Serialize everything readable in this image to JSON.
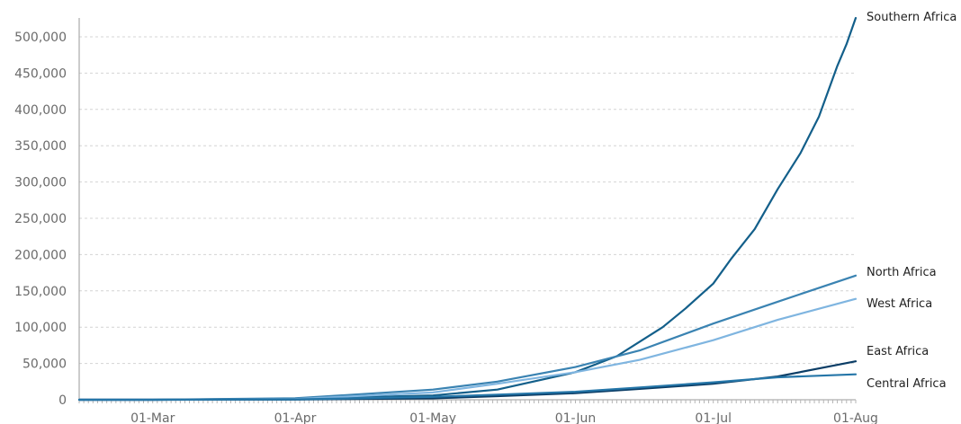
{
  "chart_data": {
    "type": "line",
    "title": "",
    "xlabel": "",
    "ylabel": "",
    "x_type": "date",
    "x_range": [
      "2020-02-14",
      "2020-08-01"
    ],
    "x_ticks": [
      {
        "date": "2020-03-01",
        "label": "01-Mar"
      },
      {
        "date": "2020-04-01",
        "label": "01-Apr"
      },
      {
        "date": "2020-05-01",
        "label": "01-May"
      },
      {
        "date": "2020-06-01",
        "label": "01-Jun"
      },
      {
        "date": "2020-07-01",
        "label": "01-Jul"
      },
      {
        "date": "2020-08-01",
        "label": "01-Aug"
      }
    ],
    "ylim": [
      0,
      525000
    ],
    "y_ticks": [
      {
        "value": 0,
        "label": "0"
      },
      {
        "value": 50000,
        "label": "50,000"
      },
      {
        "value": 100000,
        "label": "100,000"
      },
      {
        "value": 150000,
        "label": "150,000"
      },
      {
        "value": 200000,
        "label": "200,000"
      },
      {
        "value": 250000,
        "label": "250,000"
      },
      {
        "value": 300000,
        "label": "300,000"
      },
      {
        "value": 350000,
        "label": "350,000"
      },
      {
        "value": 400000,
        "label": "400,000"
      },
      {
        "value": 450000,
        "label": "450,000"
      },
      {
        "value": 500000,
        "label": "500,000"
      }
    ],
    "grid": true,
    "legend": "none (series labelled at line ends)",
    "series": [
      {
        "name": "Southern Africa",
        "color": "#135f8a",
        "points": [
          [
            "2020-02-14",
            0
          ],
          [
            "2020-03-01",
            0
          ],
          [
            "2020-04-01",
            1500
          ],
          [
            "2020-05-01",
            6000
          ],
          [
            "2020-05-15",
            14000
          ],
          [
            "2020-06-01",
            38000
          ],
          [
            "2020-06-10",
            60000
          ],
          [
            "2020-06-20",
            100000
          ],
          [
            "2020-06-25",
            126000
          ],
          [
            "2020-07-01",
            160000
          ],
          [
            "2020-07-05",
            195000
          ],
          [
            "2020-07-10",
            235000
          ],
          [
            "2020-07-15",
            290000
          ],
          [
            "2020-07-20",
            340000
          ],
          [
            "2020-07-24",
            390000
          ],
          [
            "2020-07-28",
            460000
          ],
          [
            "2020-07-30",
            490000
          ],
          [
            "2020-08-01",
            526000
          ]
        ]
      },
      {
        "name": "North Africa",
        "color": "#3a83b2",
        "points": [
          [
            "2020-02-14",
            0
          ],
          [
            "2020-03-01",
            0
          ],
          [
            "2020-04-01",
            2000
          ],
          [
            "2020-05-01",
            14000
          ],
          [
            "2020-05-15",
            25000
          ],
          [
            "2020-06-01",
            45000
          ],
          [
            "2020-06-15",
            68000
          ],
          [
            "2020-07-01",
            105000
          ],
          [
            "2020-07-15",
            135000
          ],
          [
            "2020-08-01",
            171000
          ]
        ]
      },
      {
        "name": "West Africa",
        "color": "#7fb5e0",
        "points": [
          [
            "2020-02-14",
            0
          ],
          [
            "2020-03-01",
            0
          ],
          [
            "2020-04-01",
            1000
          ],
          [
            "2020-05-01",
            10000
          ],
          [
            "2020-05-15",
            22000
          ],
          [
            "2020-06-01",
            38000
          ],
          [
            "2020-06-15",
            55000
          ],
          [
            "2020-07-01",
            82000
          ],
          [
            "2020-07-15",
            110000
          ],
          [
            "2020-08-01",
            139000
          ]
        ]
      },
      {
        "name": "East Africa",
        "color": "#0b3d66",
        "points": [
          [
            "2020-02-14",
            0
          ],
          [
            "2020-03-01",
            0
          ],
          [
            "2020-04-01",
            300
          ],
          [
            "2020-05-01",
            2000
          ],
          [
            "2020-05-15",
            5000
          ],
          [
            "2020-06-01",
            9000
          ],
          [
            "2020-06-15",
            15000
          ],
          [
            "2020-07-01",
            22000
          ],
          [
            "2020-07-15",
            32000
          ],
          [
            "2020-08-01",
            53000
          ]
        ]
      },
      {
        "name": "Central Africa",
        "color": "#2576a8",
        "points": [
          [
            "2020-02-14",
            0
          ],
          [
            "2020-03-01",
            0
          ],
          [
            "2020-04-01",
            500
          ],
          [
            "2020-05-01",
            4000
          ],
          [
            "2020-05-15",
            7000
          ],
          [
            "2020-06-01",
            11000
          ],
          [
            "2020-06-15",
            17000
          ],
          [
            "2020-07-01",
            24000
          ],
          [
            "2020-07-15",
            31000
          ],
          [
            "2020-08-01",
            35000
          ]
        ]
      }
    ]
  }
}
